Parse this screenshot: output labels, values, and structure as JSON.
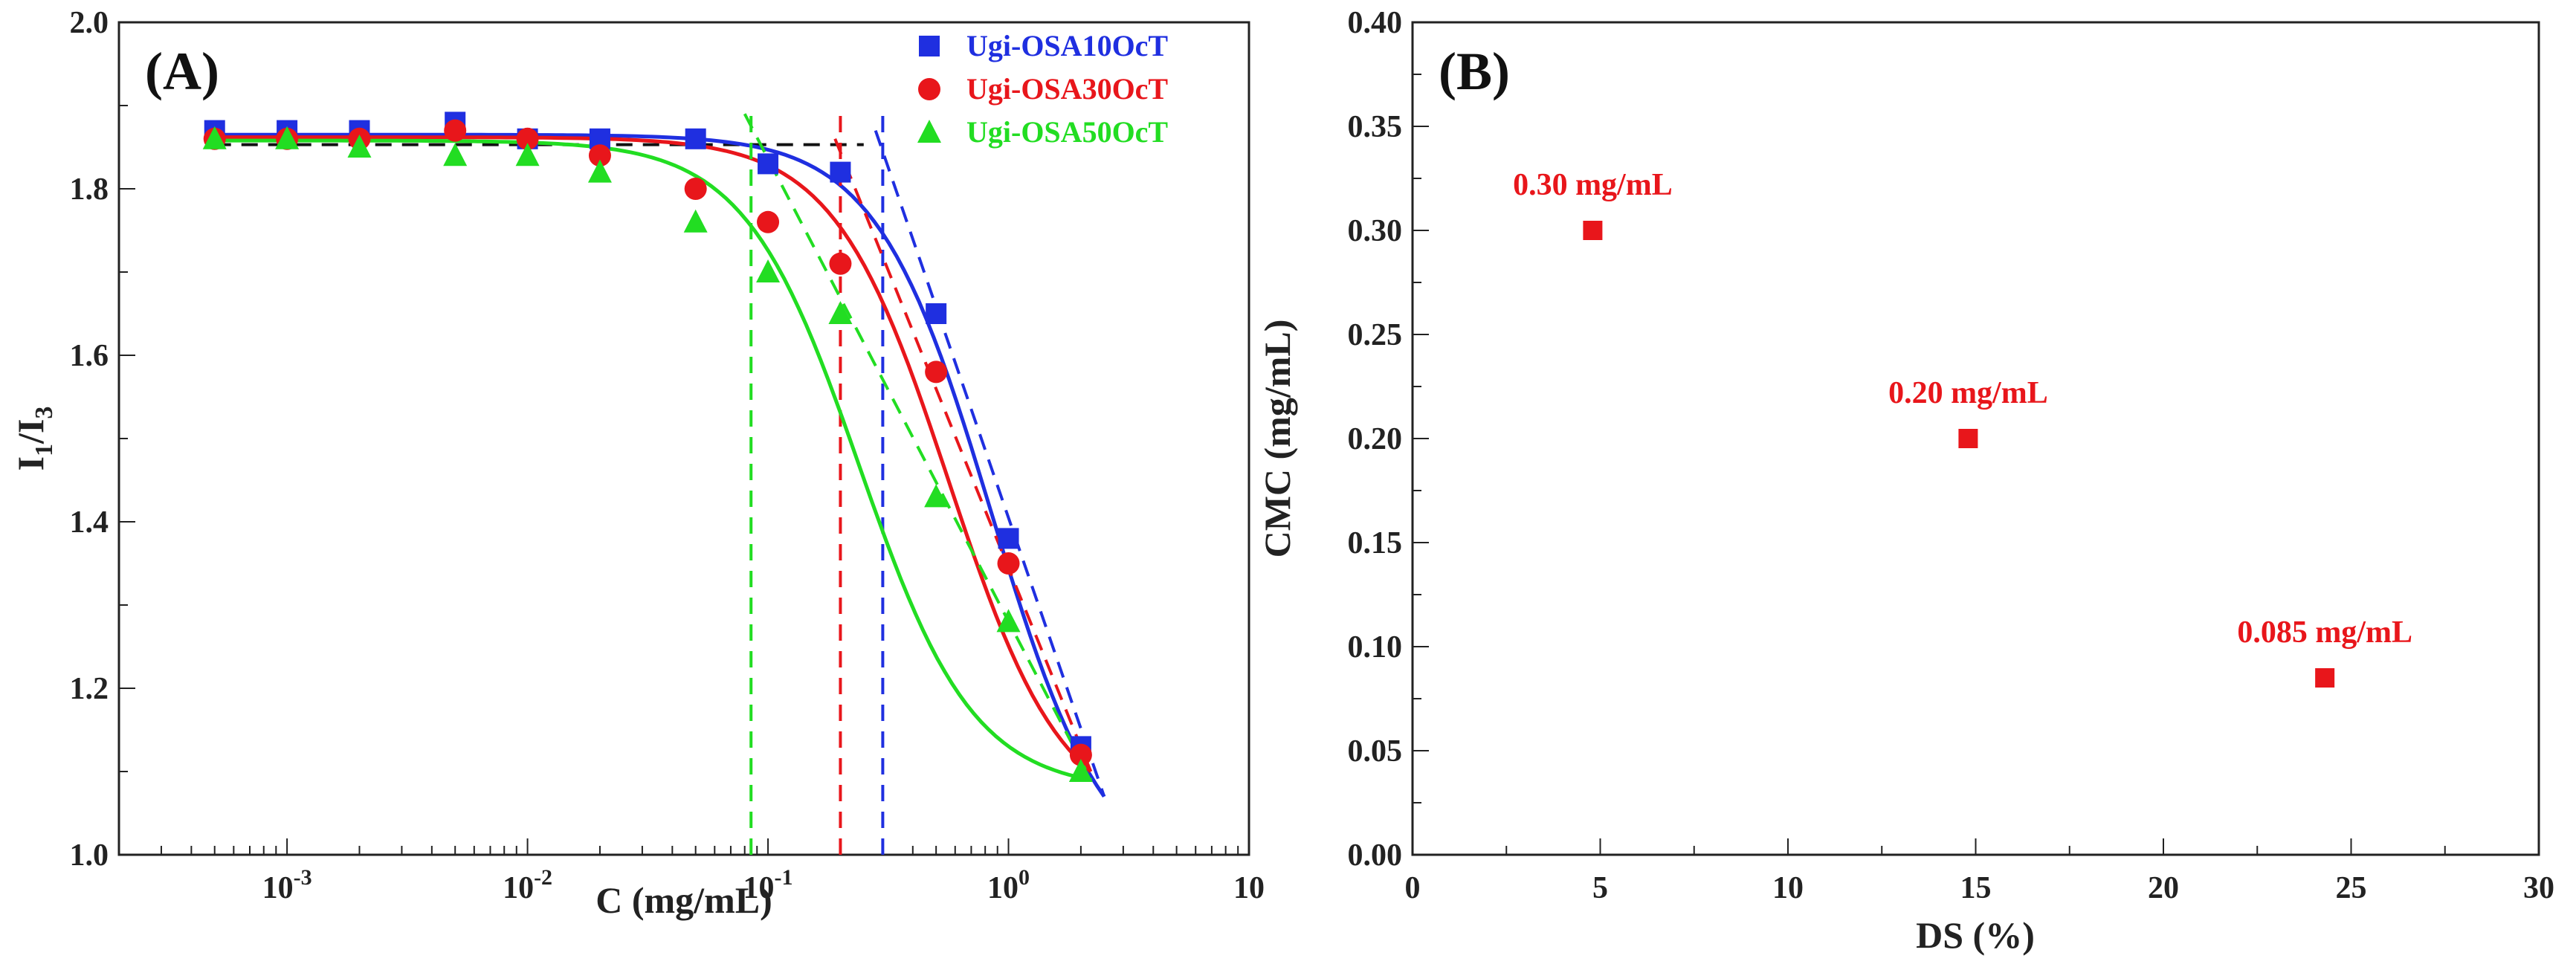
{
  "chart_data": [
    {
      "type": "scatter",
      "panel_label": "(A)",
      "xscale": "log",
      "xlim": [
        0.0002,
        10
      ],
      "ylim": [
        1.0,
        2.0
      ],
      "xlabel": "C (mg/mL)",
      "ylabel_main": "I",
      "ylabel_sub1": "1",
      "ylabel_sep": "/I",
      "ylabel_sub3": "3",
      "x_ticks": [
        0.001,
        0.01,
        0.1,
        1,
        10
      ],
      "x_tick_labels": [
        {
          "base": "10",
          "exp": "-3"
        },
        {
          "base": "10",
          "exp": "-2"
        },
        {
          "base": "10",
          "exp": "-1"
        },
        {
          "base": "10",
          "exp": "0"
        },
        {
          "base": "10",
          "exp": ""
        }
      ],
      "y_ticks": [
        "1.0",
        "1.2",
        "1.4",
        "1.6",
        "1.8",
        "2.0"
      ],
      "legend_position": "top-right",
      "series": [
        {
          "name": "Ugi-OSA10OcT",
          "marker": "square",
          "color": "#1f2fe0",
          "x": [
            0.0005,
            0.001,
            0.002,
            0.005,
            0.01,
            0.02,
            0.05,
            0.1,
            0.2,
            0.5,
            1,
            2
          ],
          "y": [
            1.87,
            1.87,
            1.87,
            1.88,
            1.86,
            1.86,
            1.86,
            1.83,
            1.82,
            1.65,
            1.38,
            1.13
          ],
          "fit_plateau": 1.865,
          "fit_cmc": 0.3,
          "fit_end": [
            2.5,
            1.07
          ],
          "tangent": [
            [
              0.28,
              1.87
            ],
            [
              2.5,
              1.07
            ]
          ],
          "cmc_line_x": 0.3
        },
        {
          "name": "Ugi-OSA30OcT",
          "marker": "circle",
          "color": "#e8161b",
          "x": [
            0.0005,
            0.001,
            0.002,
            0.005,
            0.01,
            0.02,
            0.05,
            0.1,
            0.2,
            0.5,
            1,
            2
          ],
          "y": [
            1.86,
            1.86,
            1.86,
            1.87,
            1.86,
            1.84,
            1.8,
            1.76,
            1.71,
            1.58,
            1.35,
            1.12
          ],
          "fit_plateau": 1.862,
          "fit_cmc": 0.2,
          "fit_end": [
            2.2,
            1.1
          ],
          "tangent": [
            [
              0.19,
              1.86
            ],
            [
              2.2,
              1.1
            ]
          ],
          "cmc_line_x": 0.2
        },
        {
          "name": "Ugi-OSA50OcT",
          "marker": "triangle",
          "color": "#22dd22",
          "x": [
            0.0005,
            0.001,
            0.002,
            0.005,
            0.01,
            0.02,
            0.05,
            0.1,
            0.2,
            0.5,
            1,
            2
          ],
          "y": [
            1.86,
            1.86,
            1.85,
            1.84,
            1.84,
            1.82,
            1.76,
            1.7,
            1.65,
            1.43,
            1.28,
            1.1
          ],
          "fit_plateau": 1.858,
          "fit_cmc": 0.085,
          "fit_end": [
            2.2,
            1.09
          ],
          "tangent": [
            [
              0.08,
              1.89
            ],
            [
              2.2,
              1.09
            ]
          ],
          "cmc_line_x": 0.085
        }
      ],
      "plateau_line": {
        "x": [
          0.0005,
          0.25
        ],
        "y": 1.853,
        "color": "#111111"
      }
    },
    {
      "type": "scatter",
      "panel_label": "(B)",
      "xlabel": "DS (%)",
      "ylabel": "CMC (mg/mL)",
      "xlim": [
        0,
        30
      ],
      "ylim": [
        0,
        0.4
      ],
      "x_ticks": [
        "0",
        "5",
        "10",
        "15",
        "20",
        "25",
        "30"
      ],
      "y_ticks": [
        "0.00",
        "0.05",
        "0.10",
        "0.15",
        "0.20",
        "0.25",
        "0.30",
        "0.35",
        "0.40"
      ],
      "color": "#e8161b",
      "points": [
        {
          "x": 4.8,
          "y": 0.3,
          "label": "0.30 mg/mL"
        },
        {
          "x": 14.8,
          "y": 0.2,
          "label": "0.20 mg/mL"
        },
        {
          "x": 24.3,
          "y": 0.085,
          "label": "0.085 mg/mL"
        }
      ]
    }
  ]
}
